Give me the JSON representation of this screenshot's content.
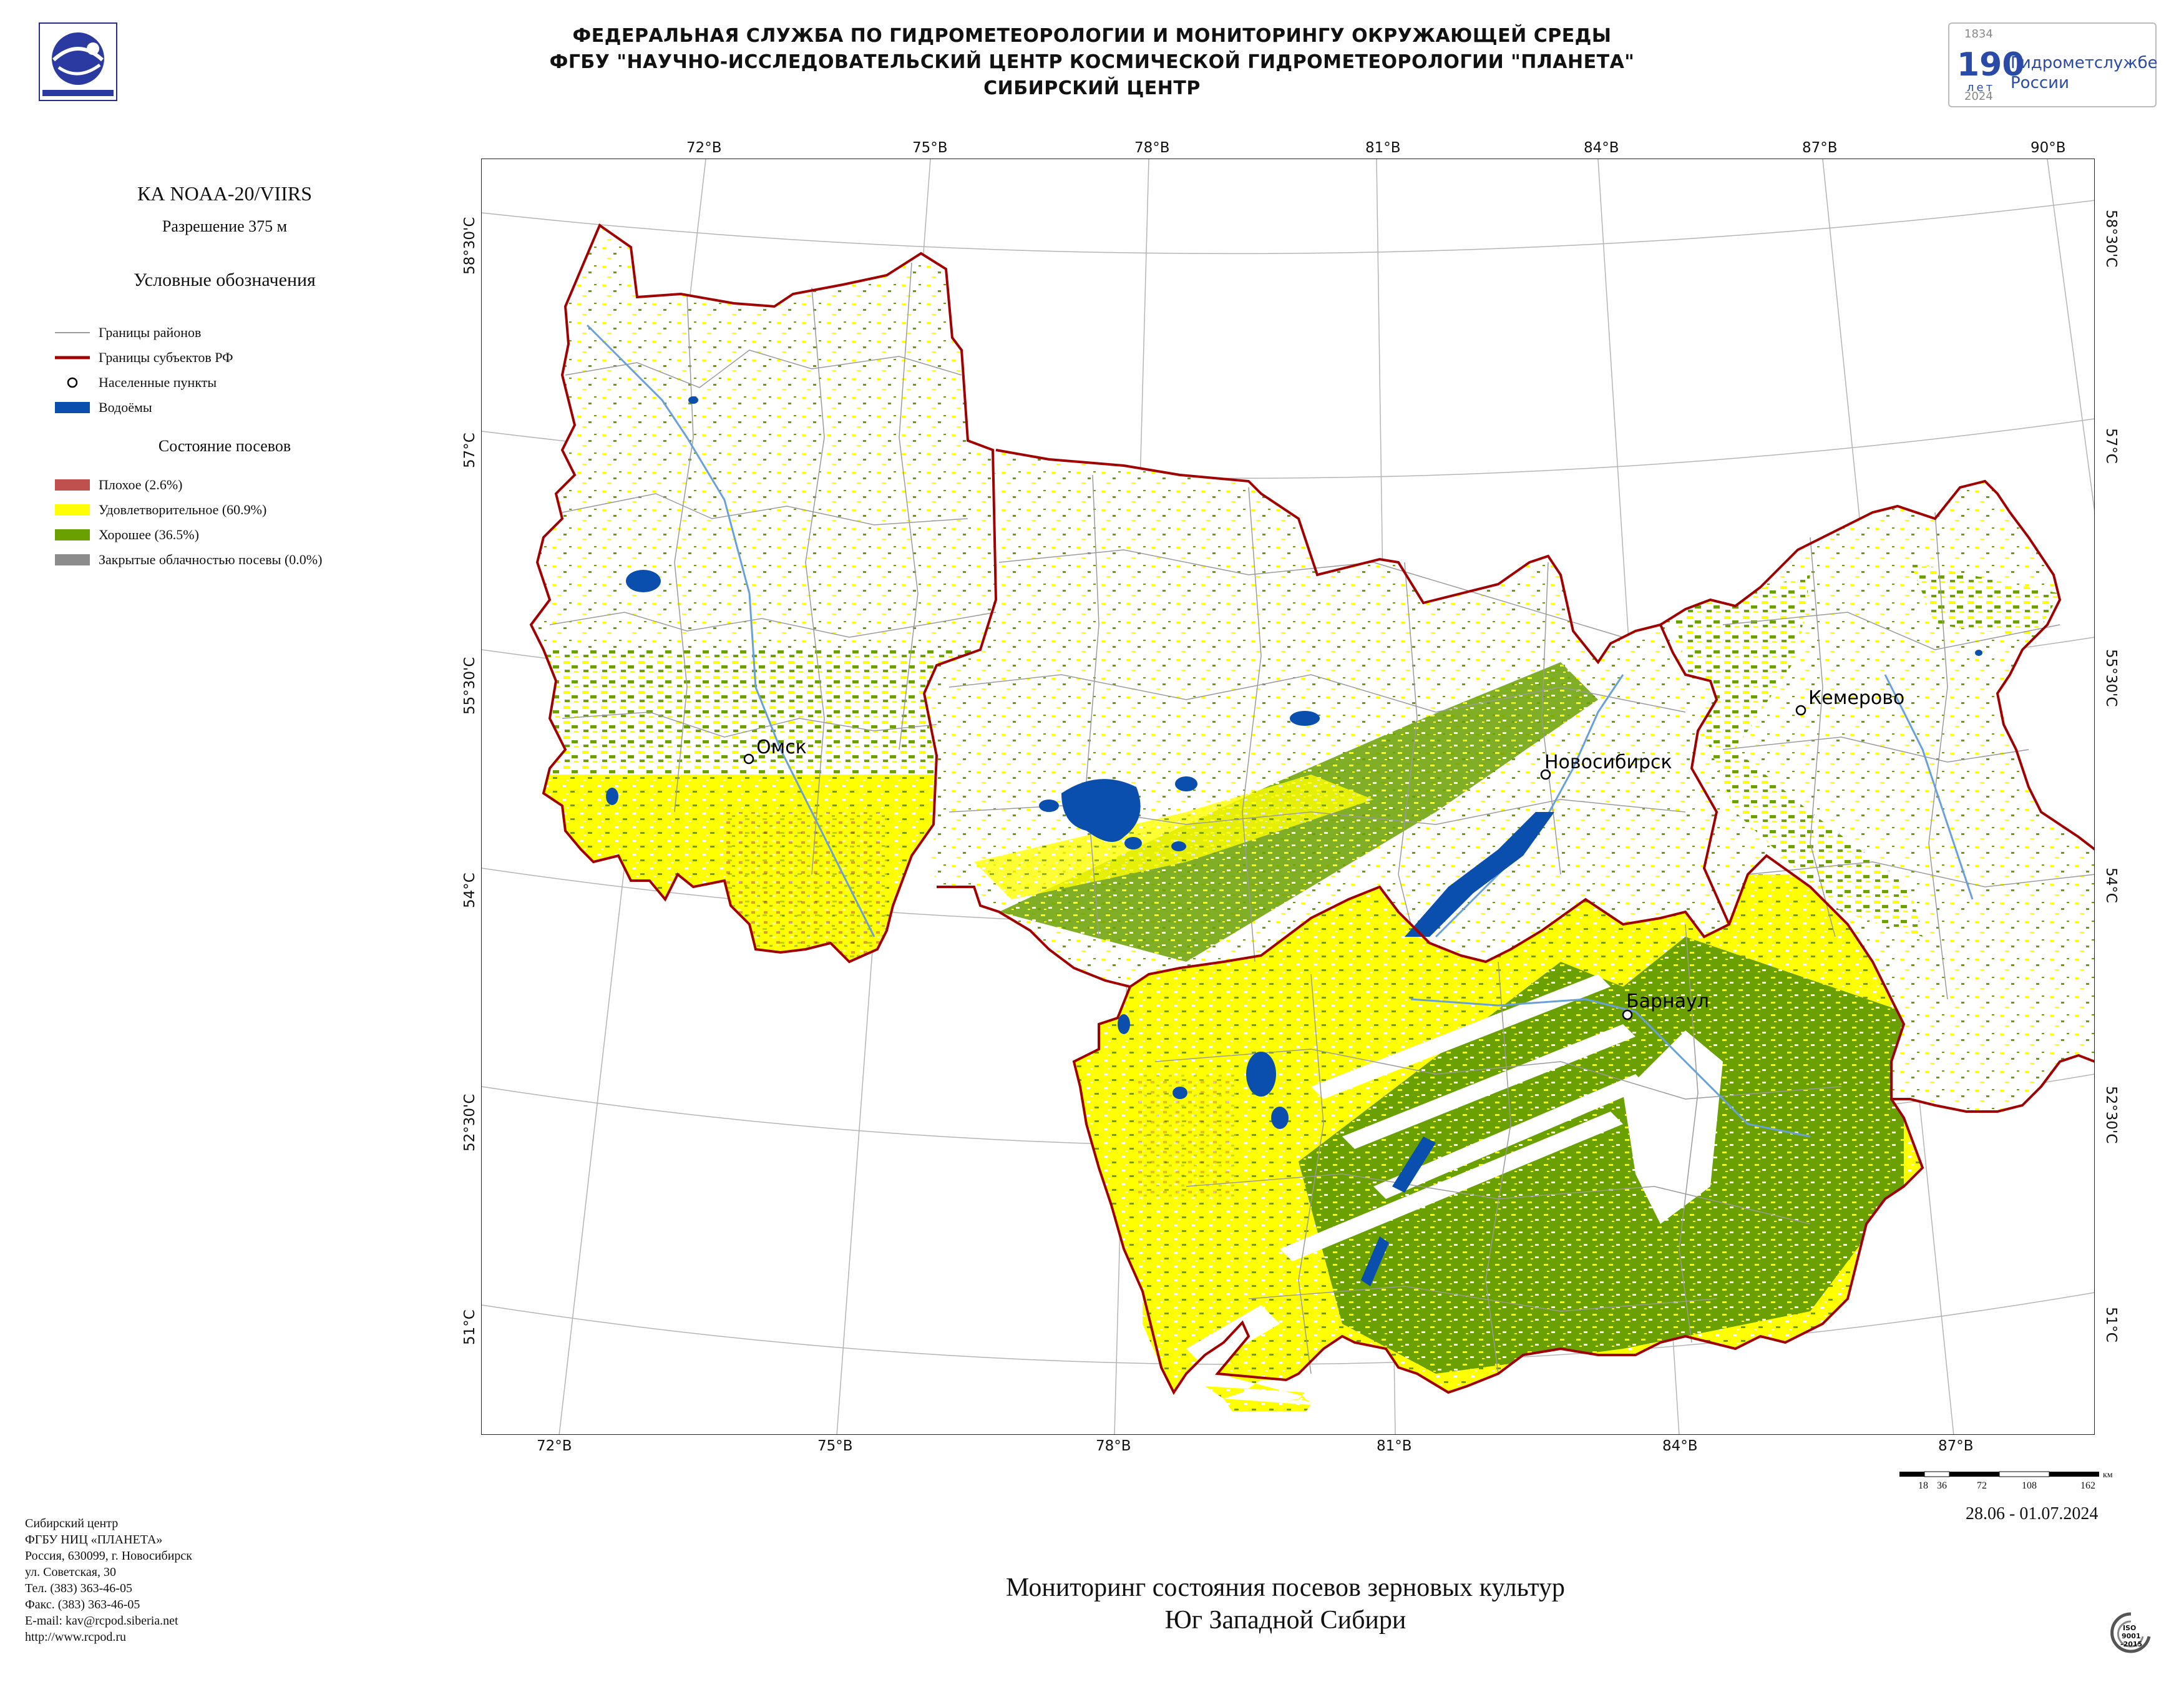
{
  "header": {
    "line1": "ФЕДЕРАЛЬНАЯ СЛУЖБА ПО ГИДРОМЕТЕОРОЛОГИИ И МОНИТОРИНГУ ОКРУЖАЮЩЕЙ СРЕДЫ",
    "line2": "ФГБУ \"НАУЧНО-ИССЛЕДОВАТЕЛЬСКИЙ ЦЕНТР КОСМИЧЕСКОЙ ГИДРОМЕТЕОРОЛОГИИ \"ПЛАНЕТА\"",
    "line3": "СИБИРСКИЙ ЦЕНТР"
  },
  "anniversary_logo": {
    "year_start": "1834",
    "number": "190",
    "years_word": "лет",
    "text_line1": "Гидрометслужбе",
    "text_line2": "России",
    "year_end": "2024"
  },
  "satellite": {
    "name": "КА NOAA-20/VIIRS",
    "resolution": "Разрешение 375 м"
  },
  "legend": {
    "title": "Условные обозначения",
    "items": [
      {
        "label": "Границы районов",
        "color": "#9a9a9a",
        "kind": "line-thin"
      },
      {
        "label": "Границы субъектов РФ",
        "color": "#a00000",
        "kind": "line-thick"
      },
      {
        "label": "Населенные пункты",
        "color": "#000000",
        "kind": "circle"
      },
      {
        "label": "Водоёмы",
        "color": "#0a4fae",
        "kind": "fill"
      }
    ],
    "crop_title": "Состояние посевов",
    "crop_items": [
      {
        "label": "Плохое (2.6%)",
        "color": "#c0504d"
      },
      {
        "label": "Удовлетворительное (60.9%)",
        "color": "#ffff00"
      },
      {
        "label": "Хорошее (36.5%)",
        "color": "#6aa000"
      },
      {
        "label": "Закрытые облачностью посевы (0.0%)",
        "color": "#8c8c8c"
      }
    ]
  },
  "map": {
    "top_lon_ticks": [
      "72°В",
      "75°В",
      "78°В",
      "81°В",
      "84°В",
      "87°В",
      "90°В"
    ],
    "bottom_lon_ticks": [
      "72°В",
      "75°В",
      "78°В",
      "81°В",
      "84°В",
      "87°В"
    ],
    "lat_ticks": [
      "58°30'С",
      "57°С",
      "55°30'С",
      "54°С",
      "52°30'С",
      "51°С"
    ],
    "cities": [
      "Омск",
      "Новосибирск",
      "Кемерово",
      "Барнаул"
    ],
    "scale": {
      "ticks": [
        "18",
        "36",
        "72",
        "108",
        "162"
      ],
      "unit": "км"
    },
    "date_range": "28.06 - 01.07.2024"
  },
  "footer": {
    "title_line1": "Мониторинг состояния посевов зерновых культур",
    "title_line2": "Юг Западной Сибири",
    "address": [
      "Сибирский центр",
      "ФГБУ НИЦ «ПЛАНЕТА»",
      "Россия, 630099, г. Новосибирск",
      "ул. Советская, 30",
      "Тел. (383) 363-46-05",
      "Факс. (383) 363-46-05",
      "E-mail: kav@rcpod.siberia.net",
      "http://www.rcpod.ru"
    ],
    "iso_badge": {
      "line1": "ISO",
      "line2": "9001",
      "line3": "-2015"
    }
  },
  "colors": {
    "poor": "#c0504d",
    "satisfactory": "#ffff00",
    "good": "#6aa000",
    "water": "#0a4fae",
    "boundary": "#a00000",
    "district": "#9a9a9a"
  }
}
